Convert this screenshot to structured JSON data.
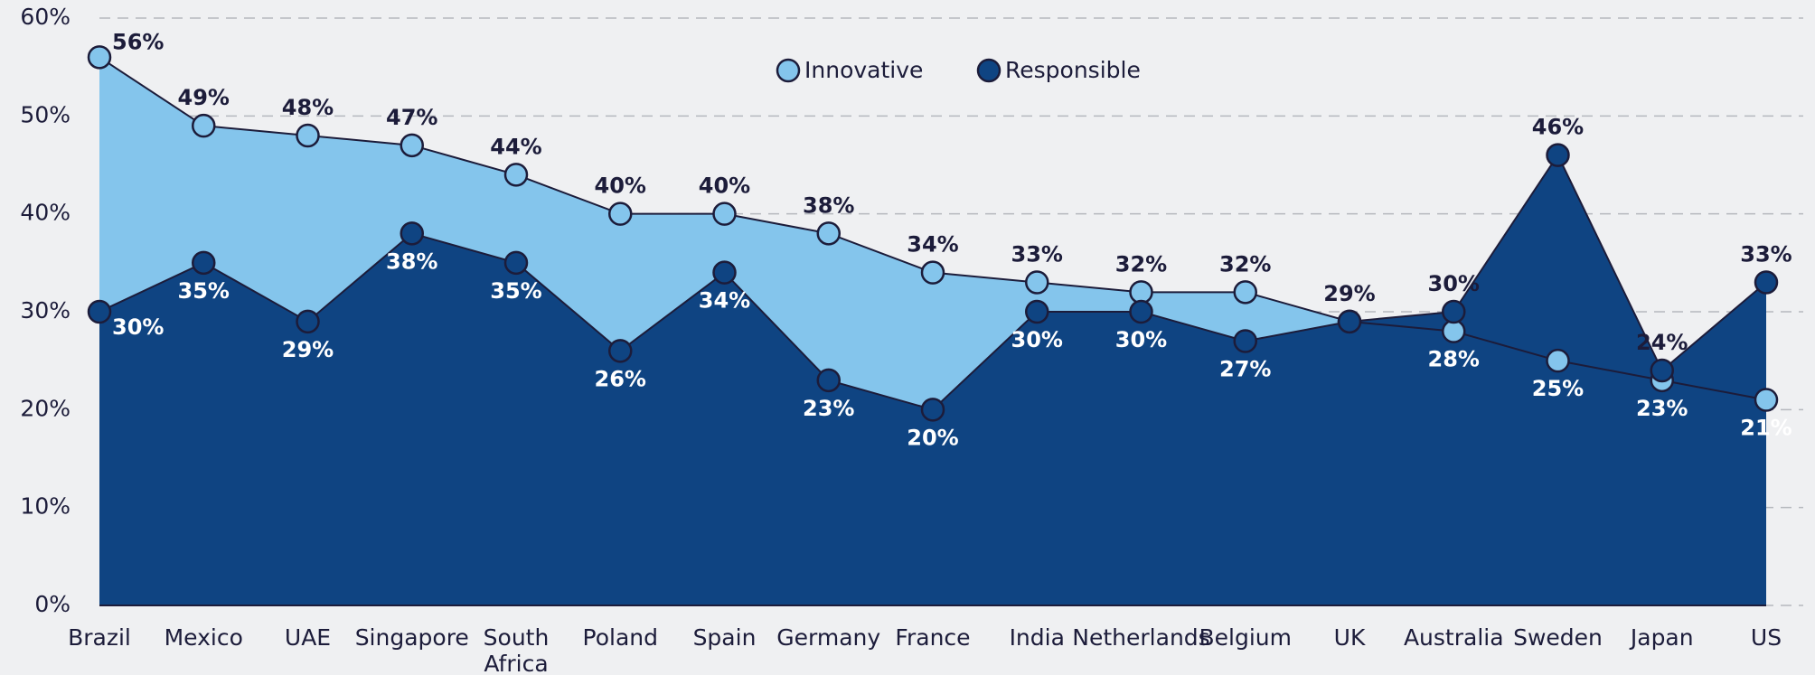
{
  "chart_data": {
    "type": "area",
    "categories": [
      "Brazil",
      "Mexico",
      "UAE",
      "Singapore",
      "South Africa",
      "Poland",
      "Spain",
      "Germany",
      "France",
      "India",
      "Netherlands",
      "Belgium",
      "UK",
      "Australia",
      "Sweden",
      "Japan",
      "US"
    ],
    "series": [
      {
        "name": "Innovative",
        "color": "#84c5ec",
        "values": [
          56,
          49,
          48,
          47,
          44,
          40,
          40,
          38,
          34,
          33,
          32,
          32,
          29,
          28,
          25,
          23,
          21
        ],
        "value_labels": [
          "56%",
          "49%",
          "48%",
          "47%",
          "44%",
          "40%",
          "40%",
          "38%",
          "34%",
          "33%",
          "32%",
          "32%",
          "29%",
          "28%",
          "25%",
          "23%",
          "21%"
        ]
      },
      {
        "name": "Responsible",
        "color": "#0f4482",
        "values": [
          30,
          35,
          29,
          38,
          35,
          26,
          34,
          23,
          20,
          30,
          30,
          27,
          29,
          30,
          46,
          24,
          33
        ],
        "value_labels": [
          "30%",
          "35%",
          "29%",
          "38%",
          "35%",
          "26%",
          "34%",
          "23%",
          "20%",
          "30%",
          "30%",
          "27%",
          null,
          "30%",
          "46%",
          "24%",
          "33%"
        ]
      }
    ],
    "ylim": [
      0,
      60
    ],
    "yticks": [
      {
        "value": 0,
        "label": "0%"
      },
      {
        "value": 10,
        "label": "10%"
      },
      {
        "value": 20,
        "label": "20%"
      },
      {
        "value": 30,
        "label": "30%"
      },
      {
        "value": 40,
        "label": "40%"
      },
      {
        "value": 50,
        "label": "50%"
      },
      {
        "value": 60,
        "label": "60%"
      }
    ],
    "grid": true,
    "legend": "top"
  }
}
